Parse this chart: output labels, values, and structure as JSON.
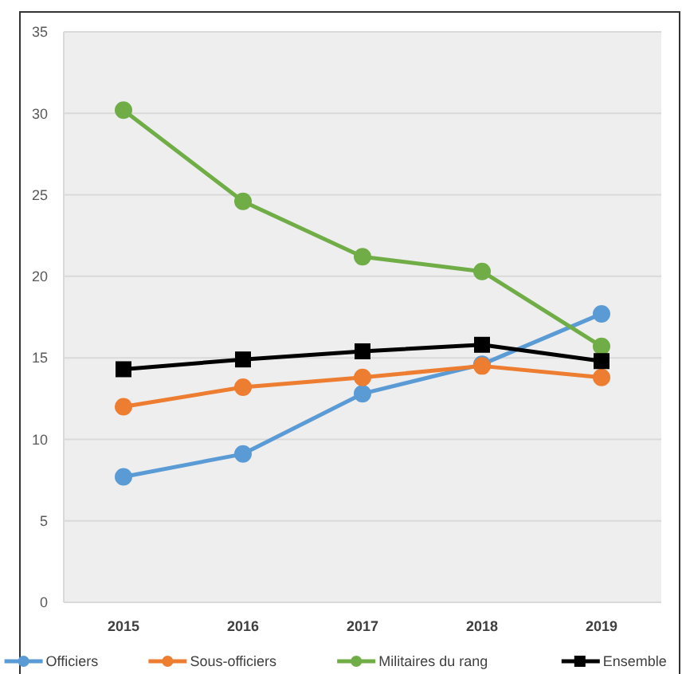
{
  "chart_data": {
    "type": "line",
    "categories": [
      "2015",
      "2016",
      "2017",
      "2018",
      "2019"
    ],
    "series": [
      {
        "name": "Officiers",
        "color": "#5b9bd5",
        "marker": "circle",
        "values": [
          7.7,
          9.1,
          12.8,
          14.6,
          17.7
        ]
      },
      {
        "name": "Sous-officiers",
        "color": "#ed7d31",
        "marker": "circle",
        "values": [
          12.0,
          13.2,
          13.8,
          14.5,
          13.8
        ]
      },
      {
        "name": "Militaires du rang",
        "color": "#70ad47",
        "marker": "circle",
        "values": [
          30.2,
          24.6,
          21.2,
          20.3,
          15.7
        ]
      },
      {
        "name": "Ensemble",
        "color": "#000000",
        "marker": "square",
        "values": [
          14.3,
          14.9,
          15.4,
          15.8,
          14.8
        ]
      }
    ],
    "ylim": [
      0,
      35
    ],
    "yticks": [
      0,
      5,
      10,
      15,
      20,
      25,
      30,
      35
    ],
    "grid": "y",
    "legend": "bottom",
    "line_style": "solid"
  }
}
